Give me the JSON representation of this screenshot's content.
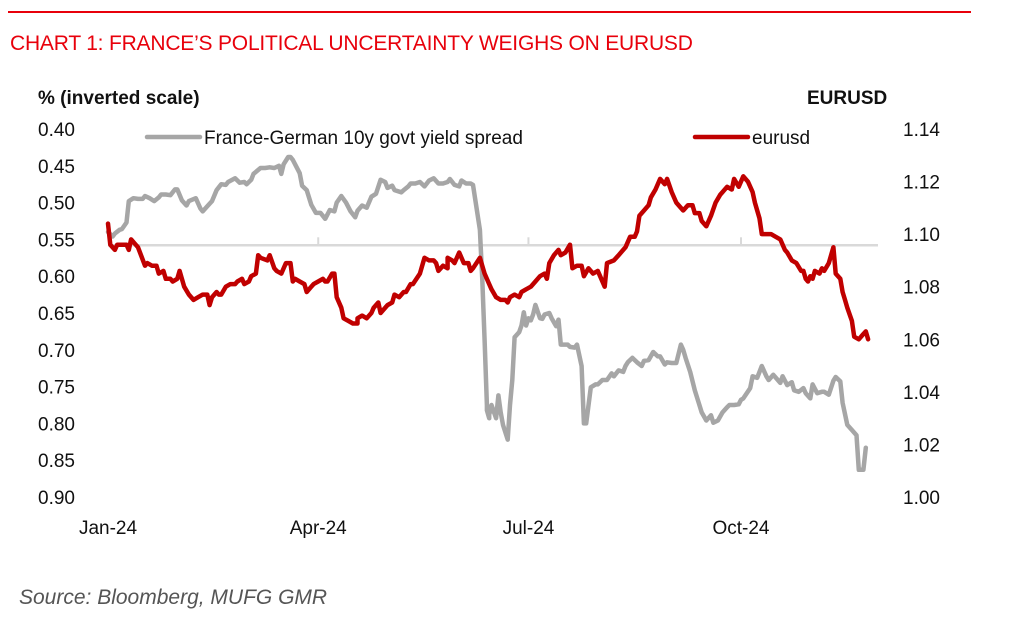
{
  "header": {
    "title": "CHART 1: FRANCE’S POLITICAL UNCERTAINTY WEIGHS ON EURUSD"
  },
  "footer": {
    "source": "Source: Bloomberg, MUFG GMR"
  },
  "colors": {
    "accent": "#e8000b",
    "spread": "#a6a6a6",
    "eurusd": "#c00000",
    "axis": "#d9d9d9"
  },
  "chart_data": {
    "type": "line",
    "title": "CHART 1: FRANCE’S POLITICAL UNCERTAINTY WEIGHS ON EURUSD",
    "xlabel": "",
    "ylabel_left": "% (inverted scale)",
    "ylabel_right": "EURUSD",
    "x_tick_labels": [
      "Jan-24",
      "Apr-24",
      "Jul-24",
      "Oct-24"
    ],
    "x_tick_days": [
      0,
      91,
      182,
      274
    ],
    "x_range_days": [
      0,
      333
    ],
    "y_left": {
      "range": [
        0.4,
        0.9
      ],
      "inverted": true,
      "ticks": [
        "0.40",
        "0.45",
        "0.50",
        "0.55",
        "0.60",
        "0.65",
        "0.70",
        "0.75",
        "0.80",
        "0.85",
        "0.90"
      ]
    },
    "y_right": {
      "range": [
        1.0,
        1.14
      ],
      "inverted": false,
      "ticks": [
        "1.00",
        "1.02",
        "1.04",
        "1.06",
        "1.08",
        "1.10",
        "1.12",
        "1.14"
      ]
    },
    "category_axis_crosses_left": 0.558,
    "grid": false,
    "legend": {
      "placement": "top",
      "entries": [
        "France-German 10y govt yield spread",
        "eurusd"
      ]
    },
    "series": [
      {
        "name": "France-German 10y govt yield spread",
        "axis": "left",
        "x_days": [
          0,
          2,
          3,
          5,
          6,
          8,
          9,
          11,
          13,
          15,
          16,
          18,
          20,
          22,
          23,
          25,
          27,
          29,
          30,
          32,
          34,
          35,
          38,
          40,
          41,
          43,
          45,
          47,
          49,
          51,
          52,
          55,
          57,
          59,
          60,
          62,
          63,
          66,
          68,
          70,
          72,
          74,
          75,
          76,
          78,
          79,
          80,
          83,
          84,
          86,
          88,
          90,
          92,
          94,
          96,
          98,
          99,
          101,
          103,
          105,
          107,
          108,
          110,
          112,
          114,
          116,
          118,
          120,
          121,
          123,
          124,
          127,
          128,
          130,
          131,
          133,
          135,
          137,
          139,
          141,
          143,
          145,
          147,
          148,
          150,
          152,
          153,
          155,
          157,
          158,
          161,
          162,
          163,
          164,
          164,
          165,
          165,
          166,
          168,
          169,
          170,
          171,
          173,
          174,
          175,
          176,
          178,
          179,
          180,
          181,
          182,
          183,
          184,
          185,
          187,
          188,
          189,
          191,
          192,
          194,
          195,
          196,
          199,
          200,
          202,
          203,
          205,
          206,
          207,
          209,
          211,
          212,
          214,
          216,
          218,
          219,
          221,
          223,
          224,
          225,
          227,
          229,
          231,
          232,
          234,
          236,
          238,
          239,
          241,
          242,
          244,
          246,
          248,
          249,
          250,
          252,
          254,
          256,
          257,
          259,
          261,
          262,
          264,
          266,
          268,
          269,
          271,
          273,
          274,
          275,
          278,
          279,
          281,
          283,
          285,
          286,
          288,
          291,
          292,
          294,
          296,
          297,
          299,
          301,
          302,
          304,
          305,
          307,
          309,
          310,
          312,
          314,
          315,
          317,
          318,
          320,
          322,
          324,
          325,
          327,
          328,
          330,
          331,
          332,
          332,
          333
        ],
        "values": [
          0.54,
          0.546,
          0.542,
          0.537,
          0.536,
          0.527,
          0.498,
          0.494,
          0.495,
          0.495,
          0.491,
          0.494,
          0.498,
          0.493,
          0.489,
          0.489,
          0.49,
          0.482,
          0.482,
          0.497,
          0.504,
          0.498,
          0.494,
          0.508,
          0.512,
          0.505,
          0.498,
          0.483,
          0.475,
          0.476,
          0.472,
          0.467,
          0.473,
          0.472,
          0.475,
          0.469,
          0.461,
          0.453,
          0.453,
          0.452,
          0.453,
          0.45,
          0.461,
          0.448,
          0.438,
          0.438,
          0.442,
          0.46,
          0.477,
          0.483,
          0.503,
          0.514,
          0.514,
          0.522,
          0.51,
          0.512,
          0.5,
          0.491,
          0.5,
          0.512,
          0.52,
          0.511,
          0.504,
          0.507,
          0.492,
          0.488,
          0.469,
          0.472,
          0.48,
          0.477,
          0.483,
          0.486,
          0.483,
          0.478,
          0.474,
          0.474,
          0.472,
          0.478,
          0.47,
          0.467,
          0.474,
          0.474,
          0.472,
          0.468,
          0.476,
          0.478,
          0.47,
          0.474,
          0.474,
          0.476,
          0.537,
          0.605,
          0.687,
          0.775,
          0.782,
          0.793,
          0.788,
          0.775,
          0.793,
          0.762,
          0.785,
          0.802,
          0.822,
          0.775,
          0.741,
          0.683,
          0.676,
          0.667,
          0.649,
          0.667,
          0.657,
          0.66,
          0.652,
          0.639,
          0.657,
          0.658,
          0.652,
          0.65,
          0.657,
          0.668,
          0.659,
          0.693,
          0.693,
          0.696,
          0.697,
          0.693,
          0.722,
          0.8,
          0.8,
          0.751,
          0.747,
          0.747,
          0.741,
          0.741,
          0.732,
          0.736,
          0.728,
          0.73,
          0.722,
          0.717,
          0.711,
          0.717,
          0.722,
          0.715,
          0.714,
          0.703,
          0.709,
          0.709,
          0.72,
          0.717,
          0.718,
          0.718,
          0.693,
          0.7,
          0.711,
          0.73,
          0.755,
          0.775,
          0.785,
          0.796,
          0.789,
          0.799,
          0.796,
          0.785,
          0.778,
          0.775,
          0.775,
          0.774,
          0.768,
          0.766,
          0.752,
          0.736,
          0.738,
          0.722,
          0.736,
          0.741,
          0.734,
          0.745,
          0.736,
          0.748,
          0.744,
          0.755,
          0.757,
          0.752,
          0.759,
          0.766,
          0.747,
          0.759,
          0.757,
          0.757,
          0.761,
          0.742,
          0.737,
          0.743,
          0.772,
          0.802,
          0.809,
          0.816,
          0.863,
          0.863,
          0.833
        ]
      },
      {
        "name": "eurusd",
        "axis": "right",
        "x_days": [
          0,
          1,
          3,
          4,
          5,
          6,
          8,
          9,
          10,
          12,
          13,
          16,
          17,
          19,
          21,
          22,
          24,
          25,
          27,
          28,
          30,
          31,
          33,
          35,
          37,
          39,
          41,
          43,
          44,
          45,
          47,
          48,
          49,
          51,
          53,
          55,
          56,
          58,
          59,
          61,
          62,
          64,
          65,
          66,
          69,
          70,
          72,
          73,
          75,
          77,
          79,
          80,
          81,
          83,
          85,
          86,
          88,
          89,
          91,
          93,
          94,
          95,
          97,
          98,
          99,
          101,
          102,
          104,
          106,
          108,
          108,
          110,
          112,
          114,
          115,
          117,
          118,
          121,
          123,
          124,
          126,
          128,
          129,
          131,
          132,
          135,
          137,
          139,
          141,
          142,
          143,
          145,
          147,
          147,
          149,
          150,
          152,
          154,
          156,
          157,
          158,
          161,
          163,
          165,
          166,
          168,
          170,
          172,
          173,
          174,
          176,
          178,
          179,
          181,
          183,
          185,
          187,
          189,
          190,
          191,
          193,
          195,
          196,
          198,
          200,
          201,
          203,
          205,
          206,
          208,
          210,
          212,
          213,
          215,
          216,
          219,
          221,
          223,
          224,
          226,
          228,
          229,
          230,
          232,
          234,
          235,
          237,
          239,
          241,
          242,
          244,
          246,
          248,
          249,
          251,
          253,
          254,
          256,
          257,
          259,
          261,
          263,
          265,
          266,
          268,
          270,
          271,
          273,
          275,
          277,
          279,
          280,
          282,
          283,
          285,
          287,
          289,
          291,
          293,
          294,
          296,
          298,
          300,
          301,
          302,
          303,
          304,
          305,
          306,
          308,
          309,
          310,
          312,
          314,
          315,
          317,
          318,
          319,
          320,
          322,
          323,
          325,
          327,
          328,
          329
        ],
        "values": [
          1.104,
          1.096,
          1.094,
          1.096,
          1.096,
          1.096,
          1.096,
          1.094,
          1.098,
          1.096,
          1.095,
          1.088,
          1.089,
          1.088,
          1.088,
          1.085,
          1.086,
          1.083,
          1.083,
          1.082,
          1.083,
          1.086,
          1.08,
          1.077,
          1.075,
          1.076,
          1.077,
          1.077,
          1.073,
          1.076,
          1.078,
          1.077,
          1.077,
          1.08,
          1.081,
          1.081,
          1.082,
          1.083,
          1.081,
          1.082,
          1.084,
          1.085,
          1.092,
          1.091,
          1.09,
          1.092,
          1.087,
          1.086,
          1.085,
          1.089,
          1.089,
          1.082,
          1.083,
          1.082,
          1.081,
          1.078,
          1.08,
          1.081,
          1.082,
          1.083,
          1.082,
          1.082,
          1.085,
          1.085,
          1.076,
          1.072,
          1.068,
          1.067,
          1.066,
          1.066,
          1.068,
          1.069,
          1.068,
          1.07,
          1.072,
          1.074,
          1.07,
          1.073,
          1.074,
          1.077,
          1.076,
          1.078,
          1.078,
          1.081,
          1.081,
          1.085,
          1.091,
          1.09,
          1.09,
          1.089,
          1.086,
          1.088,
          1.087,
          1.091,
          1.09,
          1.089,
          1.093,
          1.089,
          1.089,
          1.086,
          1.087,
          1.091,
          1.085,
          1.081,
          1.079,
          1.076,
          1.075,
          1.075,
          1.074,
          1.076,
          1.077,
          1.076,
          1.078,
          1.079,
          1.08,
          1.082,
          1.084,
          1.085,
          1.083,
          1.089,
          1.092,
          1.094,
          1.092,
          1.093,
          1.096,
          1.087,
          1.088,
          1.088,
          1.084,
          1.087,
          1.085,
          1.086,
          1.084,
          1.08,
          1.089,
          1.09,
          1.092,
          1.094,
          1.095,
          1.099,
          1.099,
          1.101,
          1.107,
          1.109,
          1.111,
          1.114,
          1.117,
          1.121,
          1.119,
          1.121,
          1.116,
          1.112,
          1.11,
          1.109,
          1.111,
          1.111,
          1.108,
          1.108,
          1.105,
          1.103,
          1.107,
          1.112,
          1.115,
          1.116,
          1.118,
          1.117,
          1.121,
          1.118,
          1.122,
          1.12,
          1.116,
          1.112,
          1.106,
          1.1,
          1.1,
          1.1,
          1.099,
          1.098,
          1.094,
          1.093,
          1.09,
          1.089,
          1.086,
          1.086,
          1.083,
          1.082,
          1.084,
          1.083,
          1.086,
          1.085,
          1.087,
          1.086,
          1.089,
          1.095,
          1.085,
          1.083,
          1.078,
          1.075,
          1.072,
          1.067,
          1.061,
          1.06,
          1.062,
          1.063,
          1.06,
          1.052,
          1.055,
          1.057,
          1.059,
          1.059,
          1.06,
          1.057
        ]
      }
    ]
  }
}
